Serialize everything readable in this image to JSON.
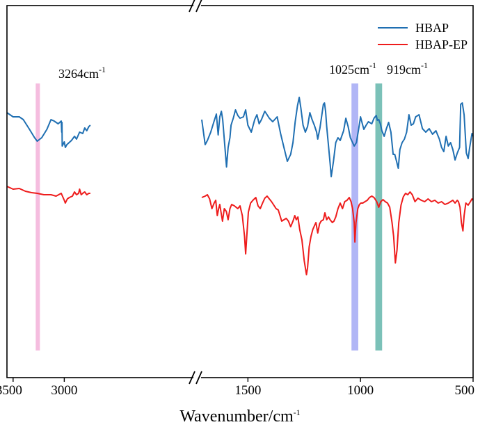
{
  "chart_data": {
    "type": "line",
    "title": "",
    "xlabel": "Wavenumber/cm",
    "xlabel_superscript": "-1",
    "ylabel": "",
    "xlim": [
      3560,
      500
    ],
    "axis_break": {
      "segment1": [
        3560,
        1745
      ],
      "segment2": [
        1705,
        500
      ]
    },
    "grid": false,
    "legend_position": "top-right",
    "x_ticks": [
      {
        "value": 3500,
        "label": "3500"
      },
      {
        "value": 3000,
        "label": "3000"
      },
      {
        "value": 1500,
        "label": "1500"
      },
      {
        "value": 1000,
        "label": "1000"
      },
      {
        "value": 500,
        "label": "500"
      }
    ],
    "colors": {
      "HBAP": "#1f6fb2",
      "HBAP-EP": "#ee1c1c"
    },
    "bands": [
      {
        "name": "band-3264",
        "center": 3264,
        "width": 30,
        "color": "#f4b6dc",
        "label": "3264cm",
        "sup": "-1"
      },
      {
        "name": "band-1025",
        "center": 1025,
        "width": 30,
        "color": "#a8aef5",
        "label": "1025cm",
        "sup": "-1"
      },
      {
        "name": "band-919",
        "center": 919,
        "width": 30,
        "color": "#6dbab0",
        "label": "919cm",
        "sup": "-1"
      }
    ],
    "series": [
      {
        "name": "HBAP",
        "color": "#1f6fb2",
        "segment1": [
          [
            3560,
            162
          ],
          [
            3500,
            168
          ],
          [
            3440,
            168
          ],
          [
            3400,
            172
          ],
          [
            3340,
            186
          ],
          [
            3290,
            198
          ],
          [
            3264,
            203
          ],
          [
            3220,
            198
          ],
          [
            3170,
            186
          ],
          [
            3130,
            172
          ],
          [
            3100,
            174
          ],
          [
            3060,
            178
          ],
          [
            3030,
            174
          ],
          [
            3025,
            190
          ],
          [
            3022,
            176
          ],
          [
            3020,
            210
          ],
          [
            3000,
            204
          ],
          [
            2990,
            212
          ],
          [
            2975,
            208
          ],
          [
            2960,
            206
          ],
          [
            2930,
            202
          ],
          [
            2900,
            196
          ],
          [
            2880,
            200
          ],
          [
            2850,
            190
          ],
          [
            2820,
            192
          ],
          [
            2800,
            184
          ],
          [
            2780,
            188
          ],
          [
            2760,
            182
          ],
          [
            2745,
            180
          ]
        ],
        "segment2": [
          [
            1705,
            172
          ],
          [
            1690,
            208
          ],
          [
            1680,
            202
          ],
          [
            1665,
            190
          ],
          [
            1650,
            174
          ],
          [
            1640,
            164
          ],
          [
            1632,
            194
          ],
          [
            1625,
            168
          ],
          [
            1618,
            160
          ],
          [
            1612,
            172
          ],
          [
            1603,
            208
          ],
          [
            1595,
            240
          ],
          [
            1588,
            212
          ],
          [
            1580,
            198
          ],
          [
            1575,
            180
          ],
          [
            1565,
            170
          ],
          [
            1555,
            158
          ],
          [
            1545,
            166
          ],
          [
            1535,
            170
          ],
          [
            1520,
            168
          ],
          [
            1510,
            158
          ],
          [
            1500,
            180
          ],
          [
            1485,
            190
          ],
          [
            1470,
            172
          ],
          [
            1460,
            165
          ],
          [
            1450,
            178
          ],
          [
            1440,
            172
          ],
          [
            1425,
            160
          ],
          [
            1415,
            165
          ],
          [
            1405,
            170
          ],
          [
            1390,
            175
          ],
          [
            1370,
            168
          ],
          [
            1355,
            192
          ],
          [
            1340,
            212
          ],
          [
            1325,
            232
          ],
          [
            1310,
            222
          ],
          [
            1300,
            205
          ],
          [
            1290,
            175
          ],
          [
            1280,
            152
          ],
          [
            1272,
            140
          ],
          [
            1265,
            155
          ],
          [
            1255,
            180
          ],
          [
            1245,
            190
          ],
          [
            1235,
            182
          ],
          [
            1225,
            162
          ],
          [
            1215,
            172
          ],
          [
            1205,
            180
          ],
          [
            1195,
            190
          ],
          [
            1190,
            200
          ],
          [
            1180,
            184
          ],
          [
            1172,
            166
          ],
          [
            1165,
            150
          ],
          [
            1160,
            148
          ],
          [
            1155,
            160
          ],
          [
            1150,
            182
          ],
          [
            1142,
            210
          ],
          [
            1135,
            235
          ],
          [
            1130,
            254
          ],
          [
            1120,
            232
          ],
          [
            1110,
            205
          ],
          [
            1100,
            198
          ],
          [
            1090,
            202
          ],
          [
            1075,
            188
          ],
          [
            1065,
            170
          ],
          [
            1055,
            182
          ],
          [
            1045,
            198
          ],
          [
            1035,
            205
          ],
          [
            1028,
            210
          ],
          [
            1018,
            205
          ],
          [
            1008,
            185
          ],
          [
            1000,
            168
          ],
          [
            992,
            178
          ],
          [
            985,
            186
          ],
          [
            975,
            180
          ],
          [
            965,
            175
          ],
          [
            950,
            178
          ],
          [
            940,
            170
          ],
          [
            930,
            166
          ],
          [
            925,
            173
          ],
          [
            919,
            172
          ],
          [
            912,
            178
          ],
          [
            905,
            188
          ],
          [
            895,
            196
          ],
          [
            885,
            185
          ],
          [
            875,
            176
          ],
          [
            865,
            190
          ],
          [
            855,
            222
          ],
          [
            848,
            222
          ],
          [
            840,
            232
          ],
          [
            832,
            242
          ],
          [
            825,
            215
          ],
          [
            815,
            205
          ],
          [
            805,
            200
          ],
          [
            795,
            190
          ],
          [
            785,
            165
          ],
          [
            775,
            180
          ],
          [
            765,
            178
          ],
          [
            755,
            168
          ],
          [
            740,
            165
          ],
          [
            725,
            185
          ],
          [
            710,
            190
          ],
          [
            695,
            185
          ],
          [
            680,
            193
          ],
          [
            665,
            188
          ],
          [
            650,
            200
          ],
          [
            640,
            212
          ],
          [
            630,
            218
          ],
          [
            620,
            196
          ],
          [
            610,
            210
          ],
          [
            600,
            205
          ],
          [
            590,
            215
          ],
          [
            580,
            230
          ],
          [
            570,
            220
          ],
          [
            560,
            212
          ],
          [
            555,
            150
          ],
          [
            548,
            148
          ],
          [
            540,
            165
          ],
          [
            530,
            220
          ],
          [
            522,
            228
          ],
          [
            515,
            212
          ],
          [
            505,
            192
          ],
          [
            500,
            196
          ]
        ]
      },
      {
        "name": "HBAP-EP",
        "color": "#ee1c1c",
        "segment1": [
          [
            3560,
            268
          ],
          [
            3500,
            272
          ],
          [
            3440,
            271
          ],
          [
            3380,
            275
          ],
          [
            3320,
            277
          ],
          [
            3264,
            278
          ],
          [
            3200,
            280
          ],
          [
            3130,
            280
          ],
          [
            3080,
            282
          ],
          [
            3030,
            278
          ],
          [
            3000,
            288
          ],
          [
            2990,
            292
          ],
          [
            2970,
            286
          ],
          [
            2950,
            284
          ],
          [
            2920,
            282
          ],
          [
            2900,
            276
          ],
          [
            2880,
            280
          ],
          [
            2860,
            278
          ],
          [
            2850,
            272
          ],
          [
            2835,
            280
          ],
          [
            2820,
            278
          ],
          [
            2800,
            276
          ],
          [
            2780,
            280
          ],
          [
            2760,
            278
          ],
          [
            2745,
            278
          ]
        ],
        "segment2": [
          [
            1705,
            284
          ],
          [
            1690,
            282
          ],
          [
            1680,
            280
          ],
          [
            1670,
            286
          ],
          [
            1660,
            300
          ],
          [
            1650,
            292
          ],
          [
            1643,
            288
          ],
          [
            1636,
            310
          ],
          [
            1630,
            300
          ],
          [
            1625,
            294
          ],
          [
            1620,
            304
          ],
          [
            1613,
            318
          ],
          [
            1605,
            300
          ],
          [
            1596,
            304
          ],
          [
            1588,
            316
          ],
          [
            1580,
            300
          ],
          [
            1572,
            294
          ],
          [
            1560,
            296
          ],
          [
            1545,
            300
          ],
          [
            1535,
            296
          ],
          [
            1525,
            310
          ],
          [
            1515,
            340
          ],
          [
            1510,
            365
          ],
          [
            1505,
            340
          ],
          [
            1498,
            305
          ],
          [
            1488,
            292
          ],
          [
            1478,
            288
          ],
          [
            1465,
            284
          ],
          [
            1455,
            296
          ],
          [
            1445,
            300
          ],
          [
            1435,
            292
          ],
          [
            1425,
            285
          ],
          [
            1415,
            282
          ],
          [
            1405,
            286
          ],
          [
            1395,
            290
          ],
          [
            1385,
            295
          ],
          [
            1375,
            300
          ],
          [
            1365,
            302
          ],
          [
            1350,
            318
          ],
          [
            1340,
            316
          ],
          [
            1330,
            314
          ],
          [
            1320,
            318
          ],
          [
            1310,
            326
          ],
          [
            1300,
            318
          ],
          [
            1292,
            310
          ],
          [
            1285,
            316
          ],
          [
            1278,
            312
          ],
          [
            1270,
            330
          ],
          [
            1260,
            345
          ],
          [
            1250,
            375
          ],
          [
            1240,
            395
          ],
          [
            1235,
            385
          ],
          [
            1228,
            355
          ],
          [
            1220,
            340
          ],
          [
            1212,
            330
          ],
          [
            1205,
            325
          ],
          [
            1198,
            320
          ],
          [
            1190,
            335
          ],
          [
            1182,
            322
          ],
          [
            1175,
            318
          ],
          [
            1165,
            316
          ],
          [
            1158,
            306
          ],
          [
            1150,
            316
          ],
          [
            1142,
            312
          ],
          [
            1135,
            316
          ],
          [
            1125,
            320
          ],
          [
            1118,
            318
          ],
          [
            1110,
            312
          ],
          [
            1100,
            300
          ],
          [
            1090,
            292
          ],
          [
            1080,
            300
          ],
          [
            1070,
            290
          ],
          [
            1060,
            288
          ],
          [
            1050,
            284
          ],
          [
            1042,
            290
          ],
          [
            1035,
            300
          ],
          [
            1028,
            320
          ],
          [
            1025,
            348
          ],
          [
            1020,
            320
          ],
          [
            1012,
            300
          ],
          [
            1005,
            294
          ],
          [
            998,
            292
          ],
          [
            990,
            292
          ],
          [
            980,
            290
          ],
          [
            970,
            288
          ],
          [
            960,
            284
          ],
          [
            950,
            282
          ],
          [
            940,
            284
          ],
          [
            928,
            290
          ],
          [
            919,
            298
          ],
          [
            910,
            290
          ],
          [
            900,
            287
          ],
          [
            890,
            290
          ],
          [
            880,
            292
          ],
          [
            870,
            298
          ],
          [
            860,
            320
          ],
          [
            853,
            340
          ],
          [
            845,
            378
          ],
          [
            838,
            360
          ],
          [
            830,
            320
          ],
          [
            820,
            295
          ],
          [
            810,
            283
          ],
          [
            800,
            278
          ],
          [
            790,
            280
          ],
          [
            780,
            276
          ],
          [
            770,
            280
          ],
          [
            758,
            290
          ],
          [
            745,
            285
          ],
          [
            730,
            288
          ],
          [
            715,
            290
          ],
          [
            700,
            286
          ],
          [
            685,
            290
          ],
          [
            670,
            288
          ],
          [
            655,
            292
          ],
          [
            640,
            290
          ],
          [
            625,
            294
          ],
          [
            610,
            292
          ],
          [
            600,
            290
          ],
          [
            590,
            288
          ],
          [
            580,
            292
          ],
          [
            570,
            288
          ],
          [
            565,
            290
          ],
          [
            558,
            298
          ],
          [
            552,
            320
          ],
          [
            545,
            332
          ],
          [
            540,
            310
          ],
          [
            532,
            292
          ],
          [
            522,
            295
          ],
          [
            512,
            290
          ],
          [
            505,
            286
          ],
          [
            500,
            288
          ]
        ]
      }
    ]
  }
}
